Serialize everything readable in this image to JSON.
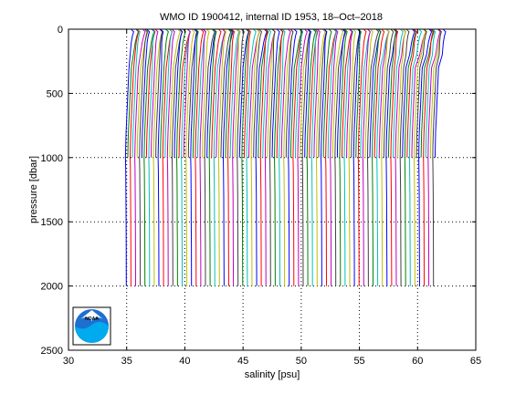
{
  "chart_data": {
    "type": "line",
    "title": "WMO ID 1900412, internal ID 1953, 18–Oct–2018",
    "xlabel": "salinity [psu]",
    "ylabel": "pressure [dbar]",
    "xlim": [
      30,
      65
    ],
    "ylim": [
      0,
      2500
    ],
    "y_reversed": true,
    "grid": "dotted",
    "xticks": [
      "30",
      "35",
      "40",
      "45",
      "50",
      "55",
      "60",
      "65"
    ],
    "yticks": [
      "0",
      "500",
      "1000",
      "1500",
      "2000",
      "2500"
    ],
    "profile_offset_psu": 0.2,
    "profile_count": 134,
    "base_profile": {
      "pressure": [
        2,
        20,
        50,
        100,
        200,
        300,
        400,
        500,
        600,
        700,
        800,
        900,
        1000,
        1100,
        1300,
        1500,
        1700,
        2000
      ],
      "salinity": [
        35.4,
        35.6,
        35.5,
        35.4,
        35.3,
        35.2,
        35.15,
        35.1,
        35.05,
        35.0,
        34.95,
        34.92,
        34.9,
        34.92,
        34.94,
        34.95,
        34.96,
        34.97
      ]
    },
    "series_colors": [
      "#0000ff",
      "#008000",
      "#ff0000",
      "#00bfbf",
      "#bf00bf",
      "#bfbf00",
      "#404040"
    ],
    "logo": "noaa-logo"
  }
}
